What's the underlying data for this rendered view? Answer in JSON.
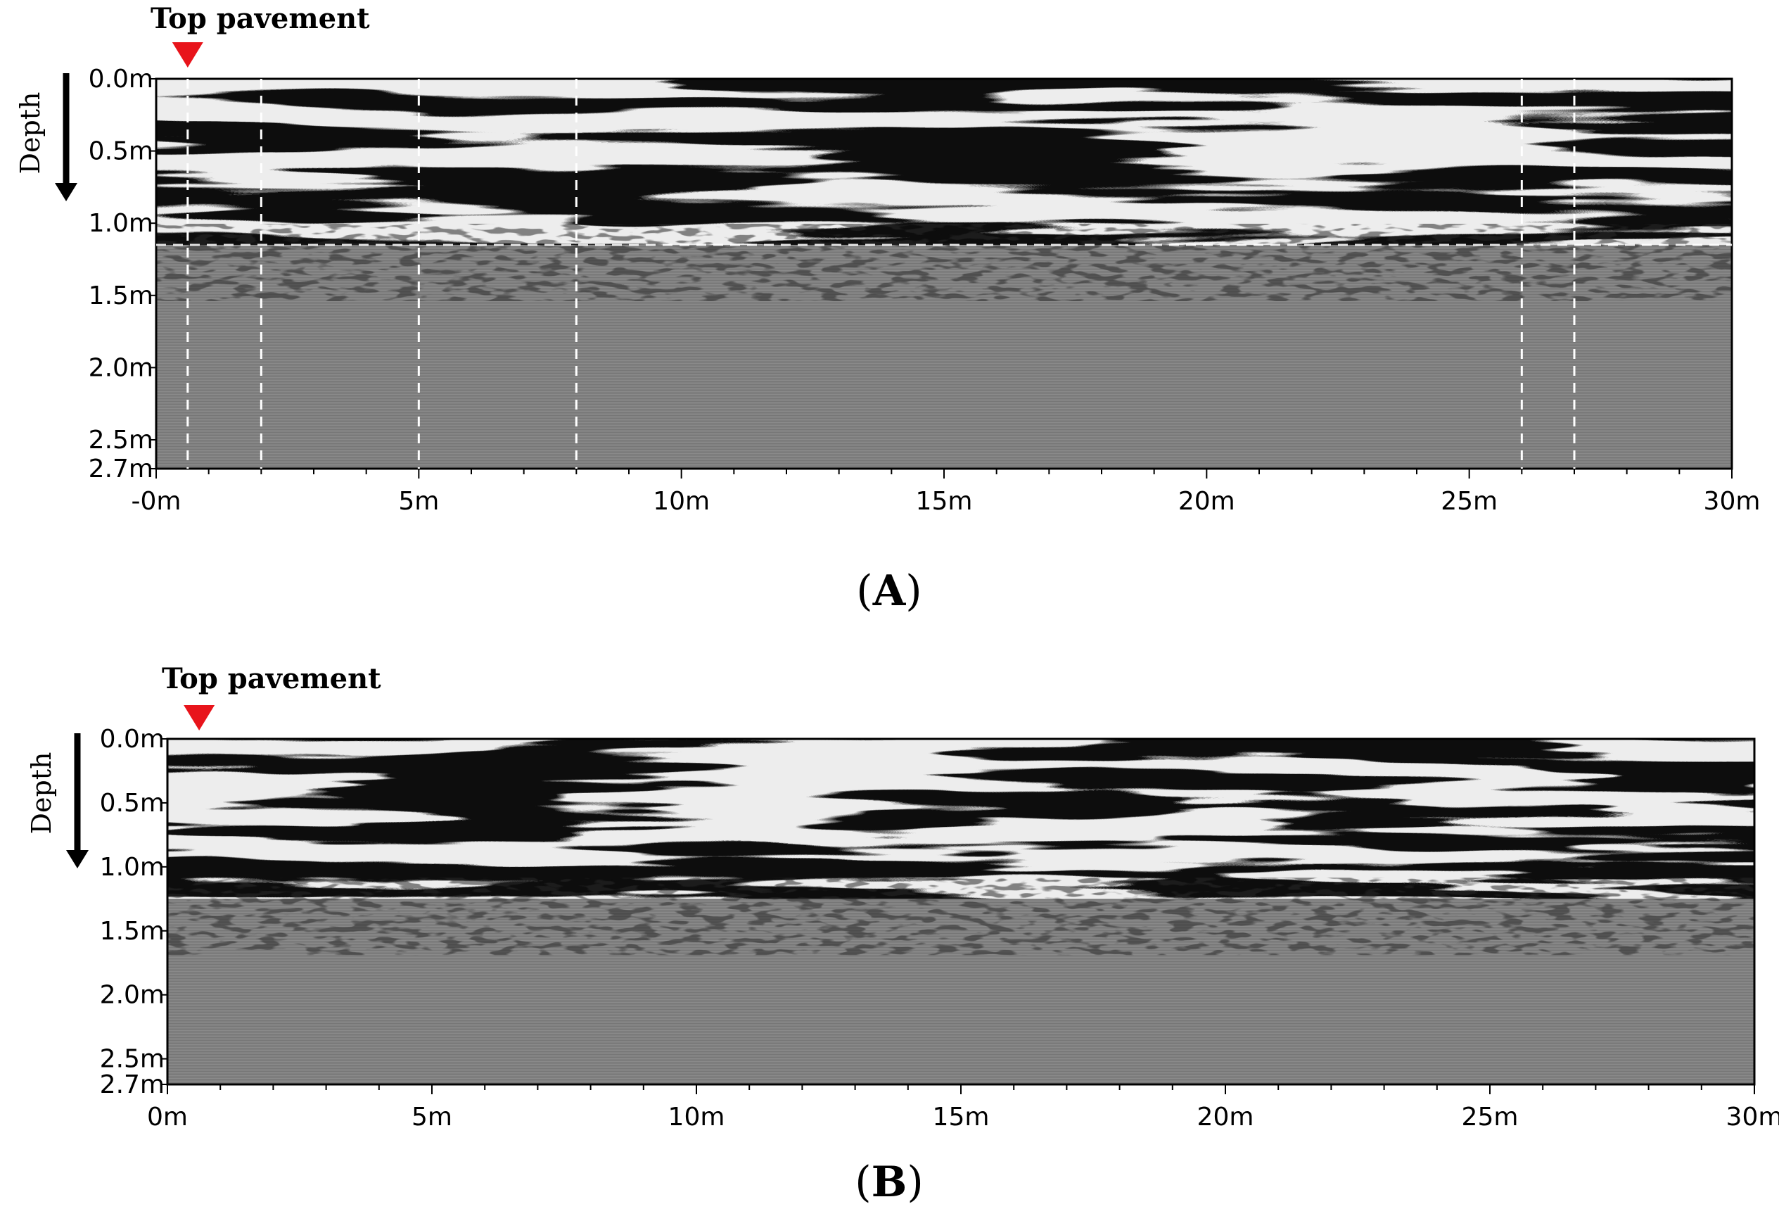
{
  "chart_data": [
    {
      "type": "radargram",
      "panel_label": "A",
      "annotation": "Top pavement",
      "marker_color": "#e8141b",
      "marker_x_m": 0.6,
      "depth_title": "Depth",
      "x_range_m": [
        0,
        30
      ],
      "depth_range_m": [
        0,
        2.7
      ],
      "x_tick_labels": [
        "-0m",
        "5m",
        "10m",
        "15m",
        "20m",
        "25m",
        "30m"
      ],
      "x_tick_values": [
        0,
        5,
        10,
        15,
        20,
        25,
        30
      ],
      "depth_tick_labels": [
        "0.0m",
        "0.5m",
        "1.0m",
        "1.5m",
        "2.0m",
        "2.5m",
        "2.7m"
      ],
      "depth_tick_values": [
        0,
        0.5,
        1.0,
        1.5,
        2.0,
        2.5,
        2.7
      ],
      "reflection_zone_depth_m": 1.15,
      "section_boundaries_m": [
        0.6,
        2.0,
        5.0,
        8.0,
        26.0,
        27.0
      ],
      "horizontal_dashed_depth_m": 1.15
    },
    {
      "type": "radargram",
      "panel_label": "B",
      "annotation": "Top pavement",
      "marker_color": "#e8141b",
      "marker_x_m": 0.6,
      "depth_title": "Depth",
      "x_range_m": [
        0,
        30
      ],
      "depth_range_m": [
        0,
        2.7
      ],
      "x_tick_labels": [
        "0m",
        "5m",
        "10m",
        "15m",
        "20m",
        "25m",
        "30m"
      ],
      "x_tick_values": [
        0,
        5,
        10,
        15,
        20,
        25,
        30
      ],
      "depth_tick_labels": [
        "0.0m",
        "0.5m",
        "1.0m",
        "1.5m",
        "2.0m",
        "2.5m",
        "2.7m"
      ],
      "depth_tick_values": [
        0,
        0.5,
        1.0,
        1.5,
        2.0,
        2.5,
        2.7
      ],
      "reflection_zone_depth_m": 1.25,
      "section_boundaries_m": [],
      "horizontal_dashed_depth_m": null
    }
  ]
}
